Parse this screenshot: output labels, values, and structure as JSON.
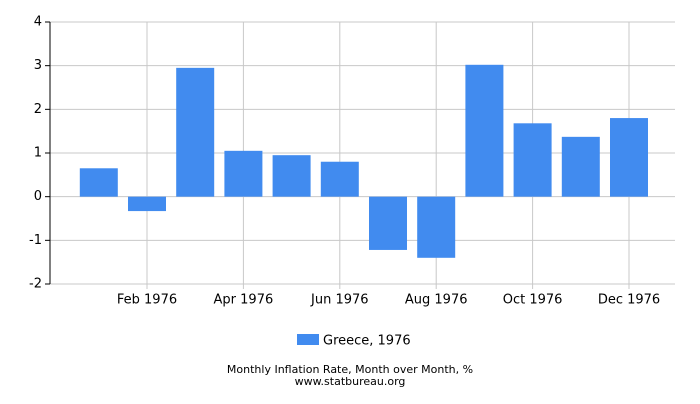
{
  "chart_data": {
    "type": "bar",
    "categories": [
      null,
      "Feb 1976",
      null,
      "Apr 1976",
      null,
      "Jun 1976",
      null,
      "Aug 1976",
      null,
      "Oct 1976",
      null,
      "Dec 1976"
    ],
    "series": [
      {
        "name": "Greece, 1976",
        "color": "#418bef",
        "values": [
          0.65,
          -0.33,
          2.95,
          1.05,
          0.95,
          0.8,
          -1.22,
          -1.4,
          3.02,
          1.68,
          1.37,
          1.8
        ]
      }
    ],
    "ylim": [
      -2,
      4
    ],
    "yticks": [
      -2,
      -1,
      0,
      1,
      2,
      3,
      4
    ],
    "grid": true,
    "title": "Monthly Inflation Rate, Month over Month, %",
    "source": "www.statbureau.org"
  }
}
